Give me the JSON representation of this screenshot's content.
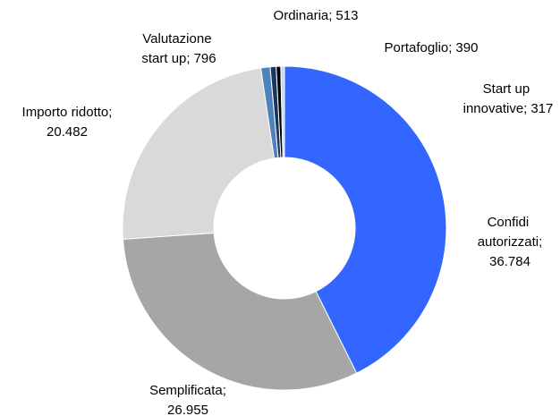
{
  "chart_data": {
    "type": "donut",
    "categories": [
      "Confidi autorizzati",
      "Semplificata",
      "Importo ridotto",
      "Valutazione start up",
      "Ordinaria",
      "Portafoglio",
      "Start up innovative"
    ],
    "values": [
      36784,
      26955,
      20482,
      796,
      513,
      390,
      317
    ],
    "value_labels": [
      "36.784",
      "26.955",
      "20.482",
      "796",
      "513",
      "390",
      "317"
    ],
    "label_separator": ";",
    "colors": [
      "#3366ff",
      "#a6a6a6",
      "#d9d9d9",
      "#4f81bd",
      "#17375e",
      "#000000",
      "#c6d9f1"
    ]
  }
}
